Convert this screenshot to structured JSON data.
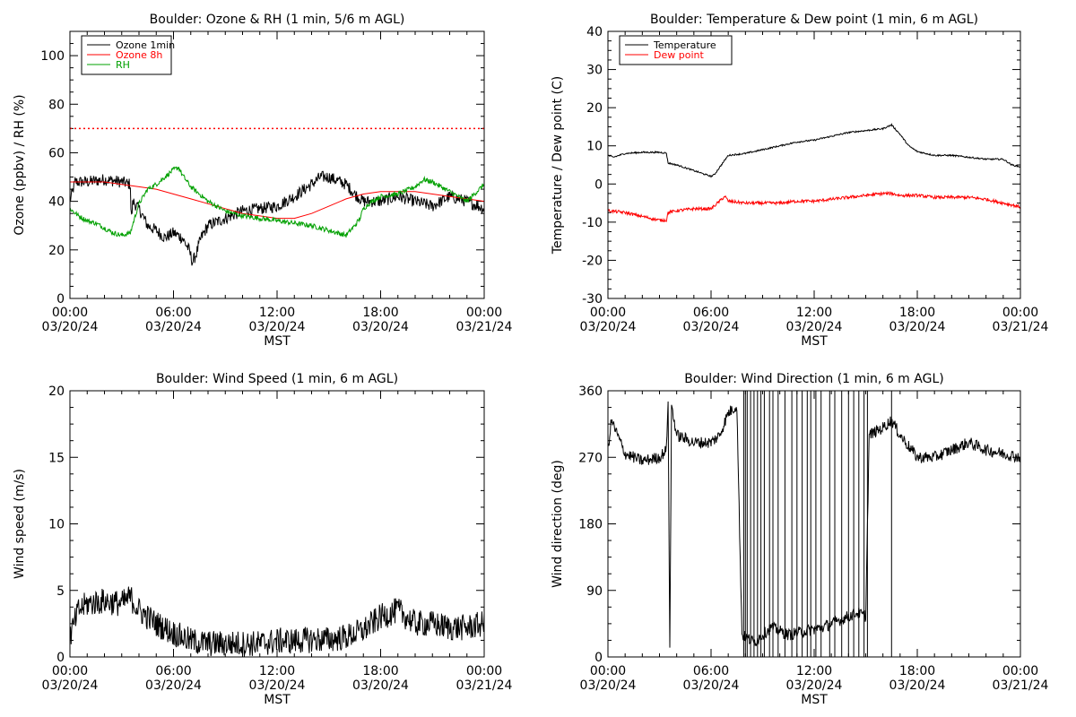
{
  "chart_data": [
    {
      "id": "ozone_rh",
      "type": "line",
      "title": "Boulder: Ozone & RH (1 min, 5/6 m AGL)",
      "xlabel": "MST",
      "ylabel": "Ozone (ppbv) / RH (%)",
      "ylim": [
        0,
        110
      ],
      "yticks": [
        0,
        20,
        40,
        60,
        80,
        100
      ],
      "xlim": [
        0,
        24
      ],
      "xticks": [
        {
          "x": 0,
          "time": "00:00",
          "date": "03/20/24"
        },
        {
          "x": 6,
          "time": "06:00",
          "date": "03/20/24"
        },
        {
          "x": 12,
          "time": "12:00",
          "date": "03/20/24"
        },
        {
          "x": 18,
          "time": "18:00",
          "date": "03/20/24"
        },
        {
          "x": 24,
          "time": "00:00",
          "date": "03/21/24"
        }
      ],
      "grid": false,
      "legend_position": "top-left",
      "reference_line": {
        "y": 70,
        "color": "#ff0000",
        "style": "dotted"
      },
      "series": [
        {
          "name": "Ozone 1min",
          "color": "#000000",
          "noise": 2.5,
          "x": [
            0,
            0.3,
            1.0,
            2.0,
            3.0,
            3.5,
            3.55,
            3.65,
            4.0,
            4.5,
            5.0,
            5.5,
            6.0,
            6.5,
            6.9,
            7.1,
            7.3,
            7.6,
            8.0,
            9.0,
            10.0,
            11.0,
            12.0,
            13.0,
            14.0,
            14.5,
            15.0,
            16.0,
            16.5,
            17.0,
            18.0,
            19.0,
            20.0,
            21.0,
            22.0,
            23.0,
            24.0
          ],
          "y": [
            40,
            48,
            48,
            49,
            48,
            47,
            32,
            40,
            37,
            30,
            28,
            25,
            27,
            25,
            20,
            15,
            18,
            25,
            30,
            33,
            36,
            37,
            38,
            42,
            47,
            50,
            50,
            47,
            43,
            40,
            40,
            42,
            40,
            38,
            42,
            40,
            37
          ]
        },
        {
          "name": "Ozone 8h",
          "color": "#ff0000",
          "noise": 0,
          "x": [
            0,
            1,
            2,
            3,
            4,
            5,
            6,
            7,
            8,
            9,
            10,
            11,
            12,
            13,
            14,
            15,
            16,
            17,
            18,
            19,
            20,
            21,
            22,
            23,
            24
          ],
          "y": [
            48,
            48,
            48,
            47,
            46,
            45,
            43,
            41,
            39,
            37,
            35,
            34,
            33,
            33,
            35,
            38,
            41,
            43,
            44,
            44,
            44,
            43,
            42,
            41,
            40
          ]
        },
        {
          "name": "RH",
          "color": "#00a000",
          "noise": 1.0,
          "x": [
            0,
            0.5,
            1.0,
            1.5,
            2.0,
            2.5,
            3.0,
            3.5,
            3.7,
            4.0,
            4.5,
            5.0,
            5.5,
            6.0,
            6.3,
            6.5,
            7.0,
            8.0,
            9.0,
            10.0,
            11.0,
            12.0,
            13.0,
            14.0,
            15.0,
            16.0,
            16.5,
            16.8,
            17.0,
            17.5,
            18.0,
            19.0,
            20.0,
            20.5,
            21.0,
            22.0,
            23.0,
            24.0
          ],
          "y": [
            37,
            34,
            32,
            31,
            29,
            27,
            26,
            27,
            32,
            39,
            45,
            47,
            50,
            53,
            54,
            51,
            46,
            40,
            36,
            34,
            33,
            32,
            31,
            30,
            28,
            26,
            30,
            33,
            37,
            40,
            42,
            43,
            46,
            49,
            48,
            44,
            40,
            47
          ]
        }
      ]
    },
    {
      "id": "temp_dew",
      "type": "line",
      "title": "Boulder: Temperature & Dew point (1 min, 6 m AGL)",
      "xlabel": "MST",
      "ylabel": "Temperature / Dew point (C)",
      "ylim": [
        -30,
        40
      ],
      "yticks": [
        -30,
        -20,
        -10,
        0,
        10,
        20,
        30,
        40
      ],
      "xlim": [
        0,
        24
      ],
      "xticks": [
        {
          "x": 0,
          "time": "00:00",
          "date": "03/20/24"
        },
        {
          "x": 6,
          "time": "06:00",
          "date": "03/20/24"
        },
        {
          "x": 12,
          "time": "12:00",
          "date": "03/20/24"
        },
        {
          "x": 18,
          "time": "18:00",
          "date": "03/20/24"
        },
        {
          "x": 24,
          "time": "00:00",
          "date": "03/21/24"
        }
      ],
      "grid": false,
      "legend_position": "top-left",
      "series": [
        {
          "name": "Temperature",
          "color": "#000000",
          "noise": 0.2,
          "x": [
            0,
            0.3,
            1.0,
            2.0,
            3.0,
            3.4,
            3.5,
            4.0,
            5.0,
            6.0,
            6.2,
            6.6,
            7.0,
            8.0,
            9.0,
            10.0,
            11.0,
            12.0,
            13.0,
            14.0,
            15.0,
            16.0,
            16.5,
            17.0,
            17.5,
            18.0,
            19.0,
            20.0,
            21.0,
            22.0,
            23.0,
            23.5,
            24.0
          ],
          "y": [
            7.5,
            7,
            8,
            8.3,
            8.3,
            8.1,
            5.5,
            5,
            3.5,
            2.0,
            2.5,
            5,
            7.5,
            8,
            9,
            10,
            11,
            11.5,
            12.5,
            13.5,
            14,
            14.5,
            15.5,
            13,
            10,
            8.5,
            7.5,
            7.5,
            7,
            6.5,
            6.5,
            5,
            4.5
          ]
        },
        {
          "name": "Dew point",
          "color": "#ff0000",
          "noise": 0.4,
          "x": [
            0,
            1.0,
            2.0,
            3.0,
            3.4,
            3.5,
            4.0,
            5.0,
            6.0,
            6.5,
            6.8,
            7.0,
            8.0,
            9.0,
            10.0,
            11.0,
            12.0,
            13.0,
            14.0,
            15.0,
            16.0,
            16.5,
            17.0,
            18.0,
            19.0,
            20.0,
            21.0,
            22.0,
            23.0,
            24.0
          ],
          "y": [
            -7,
            -7.5,
            -8.5,
            -9.5,
            -9.5,
            -7.5,
            -7,
            -6.5,
            -6.5,
            -4.5,
            -3.2,
            -4.5,
            -5,
            -5,
            -5,
            -4.5,
            -4.5,
            -4,
            -3.5,
            -3,
            -2.5,
            -2.5,
            -3,
            -3,
            -3.5,
            -3.5,
            -3.5,
            -4,
            -5,
            -6
          ]
        }
      ]
    },
    {
      "id": "wind_speed",
      "type": "line",
      "title": "Boulder: Wind Speed (1 min, 6 m AGL)",
      "xlabel": "MST",
      "ylabel": "Wind speed (m/s)",
      "ylim": [
        0,
        20
      ],
      "yticks": [
        0,
        5,
        10,
        15,
        20
      ],
      "xlim": [
        0,
        24
      ],
      "xticks": [
        {
          "x": 0,
          "time": "00:00",
          "date": "03/20/24"
        },
        {
          "x": 6,
          "time": "06:00",
          "date": "03/20/24"
        },
        {
          "x": 12,
          "time": "12:00",
          "date": "03/20/24"
        },
        {
          "x": 18,
          "time": "18:00",
          "date": "03/20/24"
        },
        {
          "x": 24,
          "time": "00:00",
          "date": "03/21/24"
        }
      ],
      "grid": false,
      "series": [
        {
          "name": "",
          "color": "#000000",
          "noise": 1.0,
          "x": [
            0,
            0.5,
            1.0,
            2.0,
            3.0,
            3.5,
            4.0,
            5.0,
            6.0,
            7.0,
            8.0,
            9.0,
            10.0,
            11.0,
            12.0,
            13.0,
            14.0,
            15.0,
            16.0,
            17.0,
            18.0,
            19.0,
            20.0,
            21.0,
            22.0,
            23.0,
            24.0
          ],
          "y": [
            1.5,
            3.5,
            4,
            4.2,
            4,
            4.5,
            3.5,
            2.5,
            1.8,
            1.2,
            1.0,
            1.0,
            1.0,
            1.0,
            1.2,
            1.2,
            1.3,
            1.3,
            1.5,
            2.0,
            3.0,
            3.5,
            2.5,
            2.5,
            2.2,
            2.2,
            2.5
          ]
        }
      ]
    },
    {
      "id": "wind_direction",
      "type": "line",
      "title": "Boulder: Wind Direction (1 min, 6 m AGL)",
      "xlabel": "MST",
      "ylabel": "Wind direction (deg)",
      "ylim": [
        0,
        360
      ],
      "yticks": [
        0,
        90,
        180,
        270,
        360
      ],
      "xlim": [
        0,
        24
      ],
      "xticks": [
        {
          "x": 0,
          "time": "00:00",
          "date": "03/20/24"
        },
        {
          "x": 6,
          "time": "06:00",
          "date": "03/20/24"
        },
        {
          "x": 12,
          "time": "12:00",
          "date": "03/20/24"
        },
        {
          "x": 18,
          "time": "18:00",
          "date": "03/20/24"
        },
        {
          "x": 24,
          "time": "00:00",
          "date": "03/21/24"
        }
      ],
      "grid": false,
      "series": [
        {
          "name": "",
          "color": "#000000",
          "noise": 8,
          "x": [
            0,
            0.2,
            1.0,
            2.0,
            3.0,
            3.4,
            3.5,
            3.6,
            3.7,
            4.0,
            5.0,
            6.0,
            6.5,
            7.0,
            7.5,
            7.8,
            8.5,
            9.5,
            10.5,
            11.5,
            12.5,
            13.5,
            14.5,
            15.0,
            15.2,
            16.0,
            16.5,
            17.0,
            18.0,
            19.0,
            20.0,
            21.0,
            22.0,
            23.0,
            24.0
          ],
          "y": [
            280,
            320,
            275,
            265,
            270,
            280,
            350,
            5,
            340,
            300,
            290,
            290,
            300,
            330,
            340,
            30,
            20,
            40,
            30,
            35,
            40,
            50,
            60,
            55,
            300,
            310,
            320,
            300,
            270,
            270,
            280,
            290,
            280,
            275,
            270
          ]
        },
        {
          "name": "",
          "color": "#000000",
          "noise": 0,
          "spikes": true,
          "x": [
            7.9,
            8.0,
            8.1,
            8.3,
            8.5,
            8.7,
            8.9,
            9.1,
            9.4,
            9.6,
            9.9,
            10.3,
            10.7,
            11.0,
            11.3,
            11.6,
            11.8,
            12.1,
            12.4,
            12.9,
            13.2,
            13.6,
            14.0,
            14.3,
            14.6,
            14.9,
            15.1,
            16.5
          ],
          "y": [
            360,
            360,
            360,
            360,
            360,
            360,
            360,
            360,
            360,
            360,
            360,
            360,
            360,
            360,
            360,
            360,
            360,
            360,
            360,
            360,
            360,
            360,
            360,
            360,
            360,
            360,
            360,
            360
          ]
        }
      ]
    }
  ]
}
